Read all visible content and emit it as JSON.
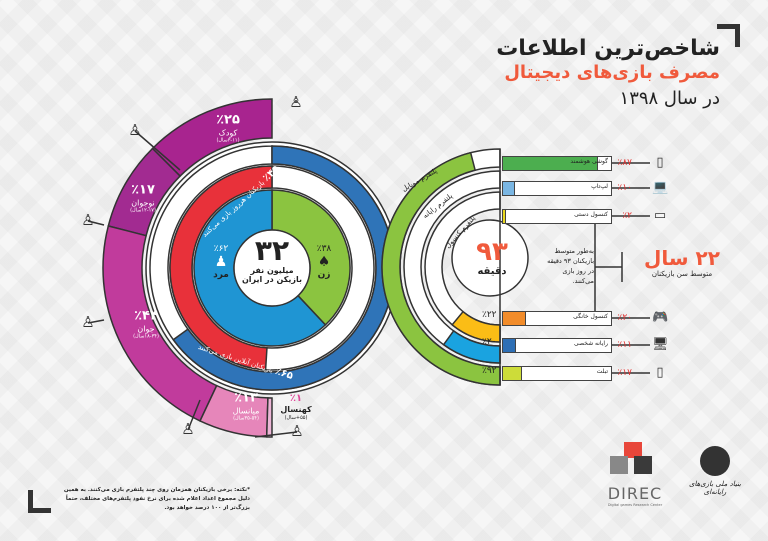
{
  "header": {
    "title_line1": "شاخص‌ترین اطلاعات",
    "title_line2": "مصرف بازی‌های دیجیتال",
    "title_line3": "در سال ۱۳۹۸"
  },
  "colors": {
    "accent_orange": "#f05a3c",
    "online_blue": "#2f74b8",
    "daily_red": "#e8313a",
    "male_blue": "#1f95d3",
    "female_green": "#8bc440",
    "mobile_green": "#8bc440",
    "computer_blue": "#1aa3e0",
    "console_yellow": "#fbbd16"
  },
  "players": {
    "total": "۳۲",
    "total_unit": "میلیون نفر",
    "total_desc": "بازیکن در ایران",
    "male": {
      "percent": 62,
      "pct_label": "٪۶۲",
      "label": "مرد",
      "icon": "man-icon"
    },
    "female": {
      "percent": 38,
      "pct_label": "٪۳۸",
      "label": "زن",
      "icon": "woman-icon"
    },
    "daily": {
      "percent": 49,
      "pct_label": "٪۴۹",
      "label": "بازیکنان هرروز بازی می‌کنند"
    },
    "online": {
      "percent": 65,
      "pct_label": "٪۶۵",
      "label": "بازیکنان آنلاین بازی می‌کنند"
    }
  },
  "age_groups": [
    {
      "percent": 25,
      "pct_label": "٪۲۵",
      "label": "کودک",
      "range": "(۳-۱۱سال)",
      "color": "#a8248f"
    },
    {
      "percent": 17,
      "pct_label": "٪۱۷",
      "label": "نوجوان",
      "range": "(۱۲-۱۷سال)",
      "color": "#a22b91"
    },
    {
      "percent": 44,
      "pct_label": "٪۴۴",
      "label": "جوان",
      "range": "(۱۸-۳۴سال)",
      "color": "#c13b9c"
    },
    {
      "percent": 13,
      "pct_label": "٪۱۳",
      "label": "میانسال",
      "range": "(۳۵-۵۴سال)",
      "color": "#e686ba"
    },
    {
      "percent": 1,
      "pct_label": "٪۱",
      "label": "کهنسال",
      "range": "(۵۵+سال)",
      "color": "#ecb6d6"
    }
  ],
  "play_time": {
    "minutes": "۹۳",
    "unit": "دقیقه",
    "desc": "به‌طور متوسط بازیکنان ۹۳ دقیقه در روز بازی می‌کنند."
  },
  "platforms": [
    {
      "label": "پلتفرم موبایل",
      "percent": 92,
      "pct_label": "٪۹۲",
      "color": "#8bc440"
    },
    {
      "label": "پلتفرم رایانه",
      "percent": 20,
      "pct_label": "٪۲۰",
      "color": "#1aa3e0"
    },
    {
      "label": "پلتفرم کنسول",
      "percent": 22,
      "pct_label": "٪۲۲",
      "color": "#fbbd16"
    }
  ],
  "devices": [
    {
      "label": "گوشی هوشمند",
      "percent": 87,
      "pct_label": "٪۸۷",
      "color": "#4cae4f",
      "icon": "smartphone-icon"
    },
    {
      "label": "لپ‌تاپ",
      "percent": 10,
      "pct_label": "٪۱۰",
      "color": "#7ab6e3",
      "icon": "laptop-icon"
    },
    {
      "label": "کنسول دستی",
      "percent": 2,
      "pct_label": "٪۲",
      "color": "#e9d81e",
      "icon": "handheld-console-icon"
    },
    {
      "label": "کنسول خانگی",
      "percent": 20,
      "pct_label": "٪۲۰",
      "color": "#f28c2a",
      "icon": "gamepad-icon"
    },
    {
      "label": "رایانه شخصی",
      "percent": 11,
      "pct_label": "٪۱۱",
      "color": "#2e6fb5",
      "icon": "desktop-icon"
    },
    {
      "label": "تبلت",
      "percent": 17,
      "pct_label": "٪۱۷",
      "color": "#cddc39",
      "icon": "tablet-icon"
    }
  ],
  "average_age": {
    "value": "۲۲ سال",
    "label": "متوسط سن بازیکنان"
  },
  "footnote": "*نکته: برخی بازیکنان همزمان روی چند پلتفرم بازی می‌کنند. به همین دلیل مجموع اعداد اعلام شده برای نرخ نفوذ پلتفرم‌های مختلف، حتماً بزرگ‌تر از ۱۰۰ درصد خواهد بود.",
  "logos": {
    "direc": "DIREC",
    "direc_sub": "Digital games Research Center",
    "foundation": "بنیاد ملی بازی‌های رایانه‌ای"
  }
}
